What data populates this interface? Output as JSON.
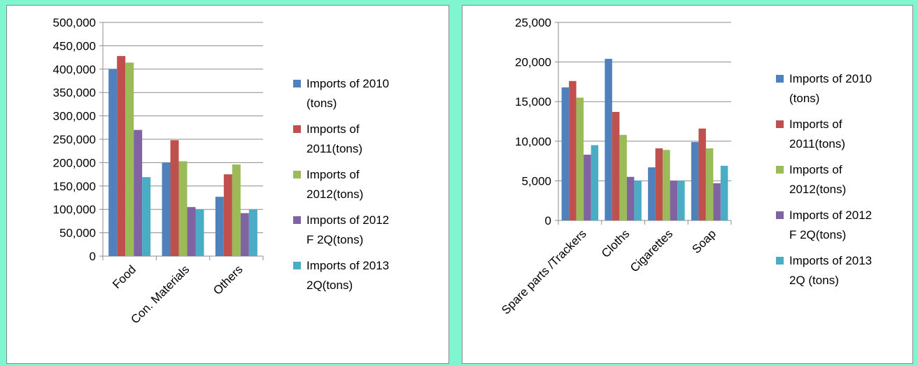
{
  "chart_data": [
    {
      "type": "bar",
      "title": "",
      "xlabel": "",
      "ylabel": "",
      "ylim": [
        0,
        500000
      ],
      "yticks": [
        "0",
        "50,000",
        "100,000",
        "150,000",
        "200,000",
        "250,000",
        "300,000",
        "350,000",
        "400,000",
        "450,000",
        "500,000"
      ],
      "grid": true,
      "legend_position": "right",
      "categories": [
        "Food",
        "Con. Materials",
        "Others"
      ],
      "series": [
        {
          "name": "Imports of 2010 (tons)",
          "legend_lines": [
            "Imports of 2010",
            "(tons)"
          ],
          "color": "#4f81bd",
          "values": [
            400000,
            200000,
            127000
          ]
        },
        {
          "name": "Imports of 2011(tons)",
          "legend_lines": [
            "Imports of",
            "2011(tons)"
          ],
          "color": "#c0504d",
          "values": [
            428000,
            248000,
            175000
          ]
        },
        {
          "name": "Imports of 2012(tons)",
          "legend_lines": [
            "Imports of",
            "2012(tons)"
          ],
          "color": "#9bbb59",
          "values": [
            414000,
            203000,
            196000
          ]
        },
        {
          "name": "Imports of 2012 F 2Q(tons)",
          "legend_lines": [
            "Imports of  2012",
            "F 2Q(tons)"
          ],
          "color": "#8064a2",
          "values": [
            270000,
            105000,
            92000
          ]
        },
        {
          "name": "Imports of 2013 2Q(tons)",
          "legend_lines": [
            "Imports of  2013",
            "2Q(tons)"
          ],
          "color": "#4bacc6",
          "values": [
            169000,
            100000,
            100000
          ]
        }
      ]
    },
    {
      "type": "bar",
      "title": "",
      "xlabel": "",
      "ylabel": "",
      "ylim": [
        0,
        25000
      ],
      "yticks": [
        "0",
        "5,000",
        "10,000",
        "15,000",
        "20,000",
        "25,000"
      ],
      "grid": true,
      "legend_position": "right",
      "categories": [
        "Spare parts /Trackers",
        "Cloths",
        "Cigarettes",
        "Soap"
      ],
      "series": [
        {
          "name": "Imports of 2010 (tons)",
          "legend_lines": [
            "Imports of 2010",
            "(tons)"
          ],
          "color": "#4f81bd",
          "values": [
            16800,
            20400,
            6700,
            9900
          ]
        },
        {
          "name": "Imports of 2011(tons)",
          "legend_lines": [
            "Imports of",
            "2011(tons)"
          ],
          "color": "#c0504d",
          "values": [
            17600,
            13700,
            9100,
            11600
          ]
        },
        {
          "name": "Imports of 2012(tons)",
          "legend_lines": [
            "Imports of",
            "2012(tons)"
          ],
          "color": "#9bbb59",
          "values": [
            15500,
            10800,
            8900,
            9100
          ]
        },
        {
          "name": "Imports of 2012 F 2Q(tons)",
          "legend_lines": [
            "Imports of  2012",
            "F 2Q(tons)"
          ],
          "color": "#8064a2",
          "values": [
            8300,
            5500,
            5000,
            4700
          ]
        },
        {
          "name": "Imports of 2013 2Q (tons)",
          "legend_lines": [
            "Imports of  2013",
            "2Q (tons)"
          ],
          "color": "#4bacc6",
          "values": [
            9500,
            5000,
            5000,
            6900
          ]
        }
      ]
    }
  ]
}
